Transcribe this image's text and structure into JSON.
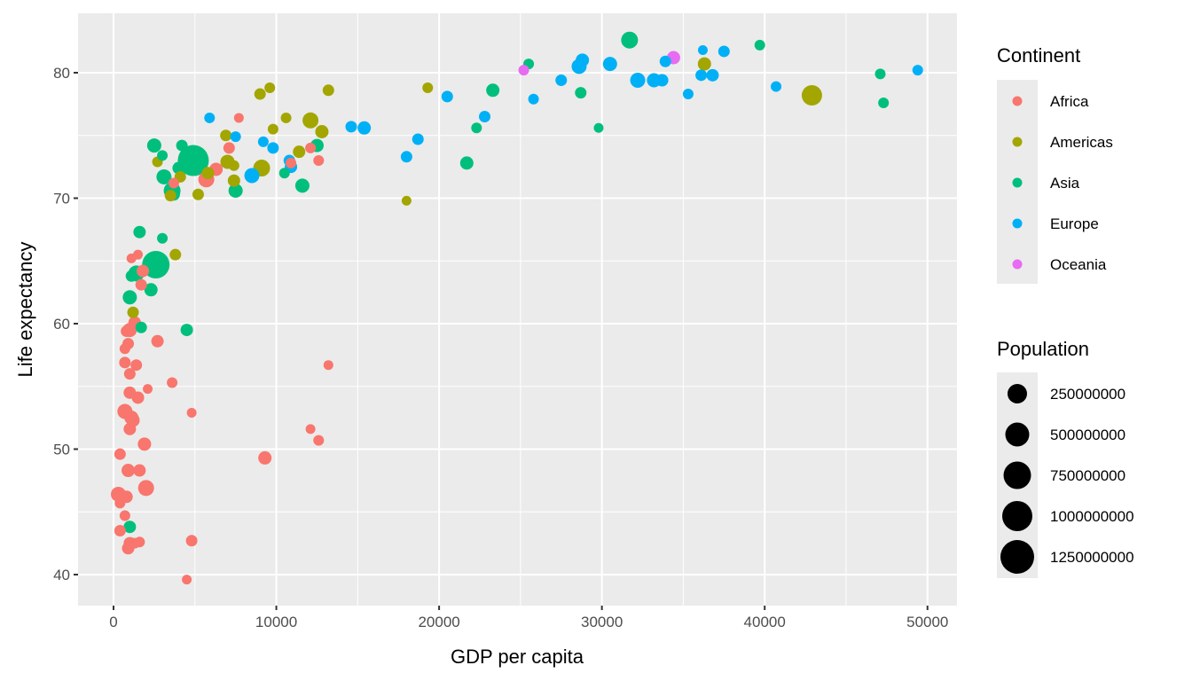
{
  "chart_data": {
    "type": "scatter",
    "title": "",
    "xlabel": "GDP per capita",
    "ylabel": "Life expectancy",
    "xlim": [
      -2200,
      51700
    ],
    "ylim": [
      37.5,
      85
    ],
    "x_ticks": [
      0,
      10000,
      20000,
      30000,
      40000,
      50000
    ],
    "x_tick_labels": [
      "0",
      "10000",
      "20000",
      "30000",
      "40000",
      "50000"
    ],
    "y_ticks": [
      40,
      50,
      60,
      70,
      80
    ],
    "y_tick_labels": [
      "40",
      "50",
      "60",
      "70",
      "80"
    ],
    "grid": true,
    "legend_position": "right",
    "color_legend": {
      "title": "Continent",
      "entries": [
        {
          "label": "Africa",
          "color": "#F8766D"
        },
        {
          "label": "Americas",
          "color": "#A3A500"
        },
        {
          "label": "Asia",
          "color": "#00BF7D"
        },
        {
          "label": "Europe",
          "color": "#00B0F6"
        },
        {
          "label": "Oceania",
          "color": "#E76BF3"
        }
      ]
    },
    "size_legend": {
      "title": "Population",
      "entries": [
        {
          "label": "250000000",
          "r": 11
        },
        {
          "label": "500000000",
          "r": 13.5
        },
        {
          "label": "750000000",
          "r": 15.5
        },
        {
          "label": "1000000000",
          "r": 17
        },
        {
          "label": "1250000000",
          "r": 19
        }
      ]
    },
    "series": [
      {
        "name": "Africa",
        "points": [
          [
            7700,
            76.4,
            5.5
          ],
          [
            7100,
            74.0,
            6.5
          ],
          [
            12100,
            74.0,
            6
          ],
          [
            6300,
            72.3,
            7.5
          ],
          [
            5700,
            71.5,
            9
          ],
          [
            3700,
            71.2,
            6
          ],
          [
            10900,
            72.8,
            6
          ],
          [
            12600,
            73.0,
            6
          ],
          [
            1100,
            65.2,
            5.5
          ],
          [
            1500,
            65.5,
            5.5
          ],
          [
            1800,
            64.2,
            7
          ],
          [
            1700,
            63.1,
            6.5
          ],
          [
            1300,
            60.1,
            7
          ],
          [
            1000,
            59.5,
            8
          ],
          [
            800,
            59.4,
            6.5
          ],
          [
            900,
            58.4,
            6.5
          ],
          [
            700,
            58.0,
            6
          ],
          [
            2700,
            58.6,
            7
          ],
          [
            700,
            56.9,
            6.5
          ],
          [
            1400,
            56.7,
            6.5
          ],
          [
            1000,
            56.0,
            6.5
          ],
          [
            3600,
            55.3,
            6
          ],
          [
            1000,
            54.5,
            7
          ],
          [
            1500,
            54.1,
            7
          ],
          [
            2100,
            54.8,
            5.5
          ],
          [
            700,
            53.0,
            8.5
          ],
          [
            1100,
            52.5,
            8
          ],
          [
            1200,
            52.3,
            7.5
          ],
          [
            1000,
            51.6,
            7
          ],
          [
            1900,
            50.4,
            7.5
          ],
          [
            13200,
            56.7,
            5.5
          ],
          [
            4800,
            52.9,
            5.5
          ],
          [
            12100,
            51.6,
            5.5
          ],
          [
            12600,
            50.7,
            6
          ],
          [
            9300,
            49.3,
            7.5
          ],
          [
            400,
            49.6,
            6.5
          ],
          [
            900,
            48.3,
            7.5
          ],
          [
            1600,
            48.3,
            7
          ],
          [
            2000,
            46.9,
            9
          ],
          [
            300,
            46.4,
            8.5
          ],
          [
            800,
            46.2,
            7
          ],
          [
            400,
            45.7,
            6
          ],
          [
            700,
            44.7,
            6
          ],
          [
            400,
            43.5,
            6.5
          ],
          [
            1000,
            42.5,
            7
          ],
          [
            900,
            42.1,
            7
          ],
          [
            1300,
            42.5,
            6
          ],
          [
            1600,
            42.6,
            6
          ],
          [
            4800,
            42.7,
            6.5
          ],
          [
            4500,
            39.6,
            5.5
          ]
        ]
      },
      {
        "name": "Americas",
        "points": [
          [
            9000,
            78.3,
            6.5
          ],
          [
            9600,
            78.8,
            6
          ],
          [
            13200,
            78.6,
            6.5
          ],
          [
            10600,
            76.4,
            6
          ],
          [
            12100,
            76.2,
            9
          ],
          [
            12800,
            75.3,
            7.5
          ],
          [
            9800,
            75.5,
            6
          ],
          [
            6900,
            75.0,
            6.5
          ],
          [
            11400,
            73.7,
            7
          ],
          [
            7000,
            72.9,
            8
          ],
          [
            7400,
            72.6,
            6
          ],
          [
            7400,
            71.4,
            7
          ],
          [
            9100,
            72.4,
            9.5
          ],
          [
            2700,
            72.9,
            6
          ],
          [
            4100,
            71.7,
            6.5
          ],
          [
            5800,
            72.0,
            7
          ],
          [
            5200,
            70.3,
            6.5
          ],
          [
            3500,
            70.2,
            6.5
          ],
          [
            3800,
            65.5,
            6.5
          ],
          [
            1200,
            60.9,
            6.5
          ],
          [
            19300,
            78.8,
            6
          ],
          [
            18000,
            69.8,
            5.5
          ],
          [
            36300,
            80.7,
            7.5
          ],
          [
            42900,
            78.2,
            11.5
          ]
        ]
      },
      {
        "name": "Asia",
        "points": [
          [
            2500,
            74.2,
            8
          ],
          [
            3000,
            73.4,
            6
          ],
          [
            4200,
            74.2,
            6.5
          ],
          [
            4000,
            72.4,
            7
          ],
          [
            4900,
            73.0,
            17.5
          ],
          [
            3100,
            71.7,
            8.5
          ],
          [
            3600,
            70.6,
            9.5
          ],
          [
            3700,
            70.3,
            7
          ],
          [
            7500,
            70.6,
            8
          ],
          [
            11600,
            71.0,
            8
          ],
          [
            12500,
            74.2,
            7.5
          ],
          [
            10500,
            72.0,
            6
          ],
          [
            1600,
            67.3,
            7
          ],
          [
            3000,
            66.8,
            6
          ],
          [
            2600,
            64.7,
            15.5
          ],
          [
            1400,
            64.0,
            9
          ],
          [
            1100,
            63.8,
            6.5
          ],
          [
            2300,
            62.7,
            7.5
          ],
          [
            1000,
            62.1,
            8
          ],
          [
            1700,
            59.7,
            6.5
          ],
          [
            4500,
            59.5,
            7
          ],
          [
            1000,
            43.8,
            7
          ],
          [
            25500,
            80.7,
            6
          ],
          [
            23300,
            78.6,
            7.5
          ],
          [
            28700,
            78.4,
            6.5
          ],
          [
            22300,
            75.6,
            6
          ],
          [
            21700,
            72.8,
            7.5
          ],
          [
            29800,
            75.6,
            5.5
          ],
          [
            31700,
            82.6,
            9.5
          ],
          [
            39700,
            82.2,
            6
          ],
          [
            47100,
            79.9,
            6
          ],
          [
            47300,
            77.6,
            6
          ]
        ]
      },
      {
        "name": "Europe",
        "points": [
          [
            5900,
            76.4,
            6
          ],
          [
            7500,
            74.9,
            6
          ],
          [
            9200,
            74.5,
            6
          ],
          [
            9800,
            74.0,
            6.5
          ],
          [
            8500,
            71.8,
            8.5
          ],
          [
            10800,
            73.0,
            6.5
          ],
          [
            10900,
            72.5,
            7
          ],
          [
            14600,
            75.7,
            6.5
          ],
          [
            15400,
            75.6,
            7.5
          ],
          [
            18700,
            74.7,
            6.5
          ],
          [
            18000,
            73.3,
            6.5
          ],
          [
            20500,
            78.1,
            6.5
          ],
          [
            22800,
            76.5,
            6.5
          ],
          [
            25800,
            77.9,
            6
          ],
          [
            27500,
            79.4,
            6.5
          ],
          [
            28600,
            80.5,
            8.5
          ],
          [
            28800,
            81.0,
            7.5
          ],
          [
            30500,
            80.7,
            8
          ],
          [
            32200,
            79.4,
            8.5
          ],
          [
            33200,
            79.4,
            8
          ],
          [
            33700,
            79.4,
            7
          ],
          [
            33900,
            80.9,
            6.5
          ],
          [
            35300,
            78.3,
            6
          ],
          [
            36100,
            79.8,
            6.5
          ],
          [
            36200,
            81.8,
            5.5
          ],
          [
            36800,
            79.8,
            7
          ],
          [
            37500,
            81.7,
            6.5
          ],
          [
            40700,
            78.9,
            6
          ],
          [
            49400,
            80.2,
            6
          ]
        ]
      },
      {
        "name": "Oceania",
        "points": [
          [
            25200,
            80.2,
            6
          ],
          [
            34400,
            81.2,
            7.5
          ]
        ]
      }
    ]
  },
  "labels": {
    "xlabel": "GDP per capita",
    "ylabel": "Life expectancy",
    "color_legend_title": "Continent",
    "size_legend_title": "Population"
  }
}
